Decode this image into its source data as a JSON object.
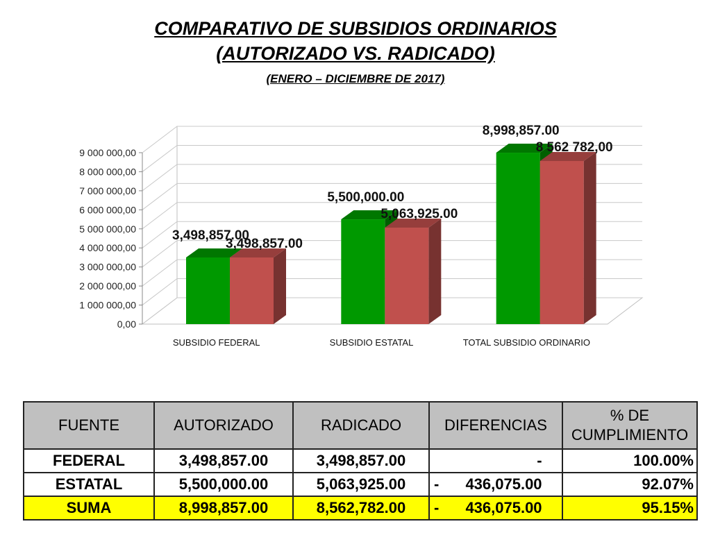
{
  "title": {
    "line1": "COMPARATIVO DE SUBSIDIOS ORDINARIOS",
    "line2": "(AUTORIZADO VS. RADICADO)",
    "line3": "(ENERO – DICIEMBRE DE 2017)"
  },
  "chart_data": {
    "type": "bar",
    "categories": [
      "SUBSIDIO FEDERAL",
      "SUBSIDIO ESTATAL",
      "TOTAL SUBSIDIO ORDINARIO"
    ],
    "series": [
      {
        "values": [
          3498857.0,
          5500000.0,
          8998857.0
        ],
        "labels": [
          "3,498,857.00",
          "5,500,000.00",
          "8,998,857.00"
        ],
        "color": "#009900"
      },
      {
        "values": [
          3498857.0,
          5063925.0,
          8562782.0
        ],
        "labels": [
          "3,498,857.00",
          "5,063,925.00",
          "8 562 782,00"
        ],
        "color": "#c0504d"
      }
    ],
    "yticks": [
      "0,00",
      "1 000 000,00",
      "2 000 000,00",
      "3 000 000,00",
      "4 000 000,00",
      "5 000 000,00",
      "6 000 000,00",
      "7 000 000,00",
      "8 000 000,00",
      "9 000 000,00"
    ],
    "ylim": [
      0,
      9000000
    ],
    "grid": true,
    "legend": "none",
    "style": "3d-column"
  },
  "table": {
    "headers": [
      "FUENTE",
      "AUTORIZADO",
      "RADICADO",
      "DIFERENCIAS",
      "% DE CUMPLIMIENTO"
    ],
    "rows": [
      {
        "fuente": "FEDERAL",
        "autorizado": "3,498,857.00",
        "radicado": "3,498,857.00",
        "dif_sign": "",
        "dif_value": "-",
        "pct": "100.00%"
      },
      {
        "fuente": "ESTATAL",
        "autorizado": "5,500,000.00",
        "radicado": "5,063,925.00",
        "dif_sign": "-",
        "dif_value": "436,075.00",
        "pct": "92.07%"
      },
      {
        "fuente": "SUMA",
        "autorizado": "8,998,857.00",
        "radicado": "8,562,782.00",
        "dif_sign": "-",
        "dif_value": "436,075.00",
        "pct": "95.15%"
      }
    ],
    "highlight_color": "#ffff00"
  }
}
